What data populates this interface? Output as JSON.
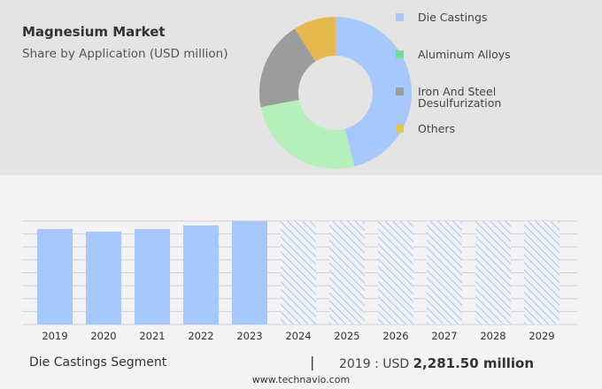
{
  "header": {
    "title": "Magnesium Market",
    "subtitle": "Share by Application (USD million)"
  },
  "chart_data": [
    {
      "type": "pie",
      "style": "donut",
      "segments": [
        {
          "name": "Die Castings",
          "value": 46,
          "color": "#a7c8fd"
        },
        {
          "name": "Aluminum Alloys",
          "value": 26,
          "color": "#b5efbb"
        },
        {
          "name": "Iron And Steel Desulfurization",
          "value": 19,
          "color": "#9c9c9c"
        },
        {
          "name": "Others",
          "value": 9,
          "color": "#e6b94e"
        }
      ],
      "legend_colors": [
        "#a7c8fd",
        "#6ee08c",
        "#9c9c9c",
        "#e6c44e"
      ],
      "legend": "right"
    },
    {
      "type": "bar",
      "categories": [
        "2019",
        "2020",
        "2021",
        "2022",
        "2023",
        "2024",
        "2025",
        "2026",
        "2027",
        "2028",
        "2029"
      ],
      "values": [
        2281.5,
        2218,
        2281,
        2366,
        2471,
        null,
        null,
        null,
        null,
        null,
        null
      ],
      "forecast": [
        "2024",
        "2025",
        "2026",
        "2027",
        "2028",
        "2029"
      ],
      "ylim": [
        0,
        2471
      ],
      "grid": true,
      "color": "#a7c8fd"
    }
  ],
  "footer": {
    "segment": "Die Castings Segment",
    "separator": "|",
    "year_label": "2019 : USD",
    "value": "2,281.50 million",
    "url": "www.technavio.com"
  }
}
